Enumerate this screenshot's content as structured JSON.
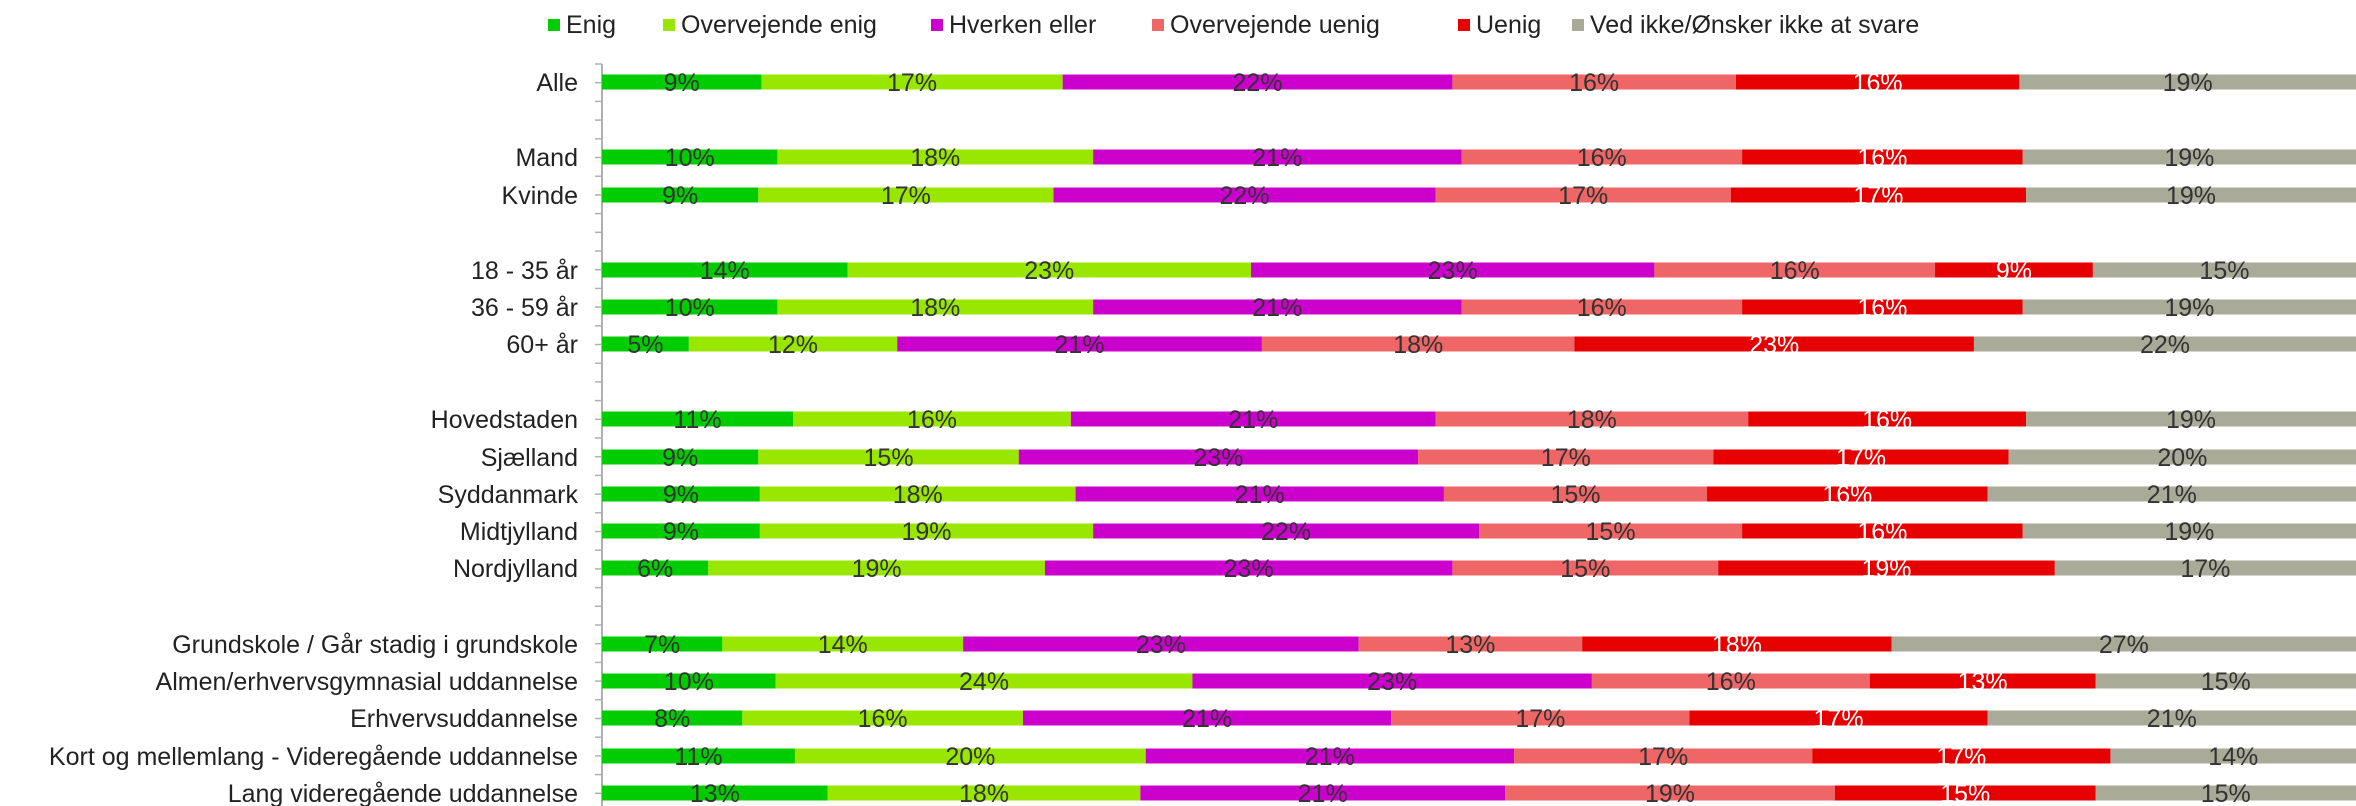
{
  "chart_data": {
    "type": "bar",
    "orientation": "horizontal",
    "stacked": true,
    "percent": true,
    "legend_position": "top",
    "grid": false,
    "categories": [
      "Alle",
      "Mand",
      "Kvinde",
      "18 - 35 år",
      "36 - 59 år",
      "60+ år",
      "Hovedstaden",
      "Sjælland",
      "Syddanmark",
      "Midtjylland",
      "Nordjylland",
      "Grundskole / Går stadig i grundskole",
      "Almen/erhvervsgymnasial uddannelse",
      "Erhvervsuddannelse",
      "Kort og mellemlang - Videregående uddannelse",
      "Lang videregående uddannelse"
    ],
    "series": [
      {
        "name": "Enig",
        "color": "#00cc00",
        "label_color": "#333333",
        "values": [
          9,
          10,
          9,
          14,
          10,
          5,
          11,
          9,
          9,
          9,
          6,
          7,
          10,
          8,
          11,
          13
        ]
      },
      {
        "name": "Overvejende enig",
        "color": "#99e600",
        "label_color": "#333333",
        "values": [
          17,
          18,
          17,
          23,
          18,
          12,
          16,
          15,
          18,
          19,
          19,
          14,
          24,
          16,
          20,
          18
        ]
      },
      {
        "name": "Hverken eller",
        "color": "#cc00cc",
        "label_color": "#333333",
        "values": [
          22,
          21,
          22,
          23,
          21,
          21,
          21,
          23,
          21,
          22,
          23,
          23,
          23,
          21,
          21,
          21
        ]
      },
      {
        "name": "Overvejende uenig",
        "color": "#ee6666",
        "label_color": "#333333",
        "values": [
          16,
          16,
          17,
          16,
          16,
          18,
          18,
          17,
          15,
          15,
          15,
          13,
          16,
          17,
          17,
          19
        ]
      },
      {
        "name": "Uenig",
        "color": "#e60000",
        "label_color": "#ffffff",
        "values": [
          16,
          16,
          17,
          9,
          16,
          23,
          16,
          17,
          16,
          16,
          19,
          18,
          13,
          17,
          17,
          15
        ]
      },
      {
        "name": "Ved ikke/Ønsker ikke at svare",
        "color": "#aaaa99",
        "label_color": "#333333",
        "values": [
          19,
          19,
          19,
          15,
          19,
          22,
          19,
          20,
          21,
          19,
          17,
          27,
          15,
          21,
          14,
          15
        ]
      }
    ]
  }
}
